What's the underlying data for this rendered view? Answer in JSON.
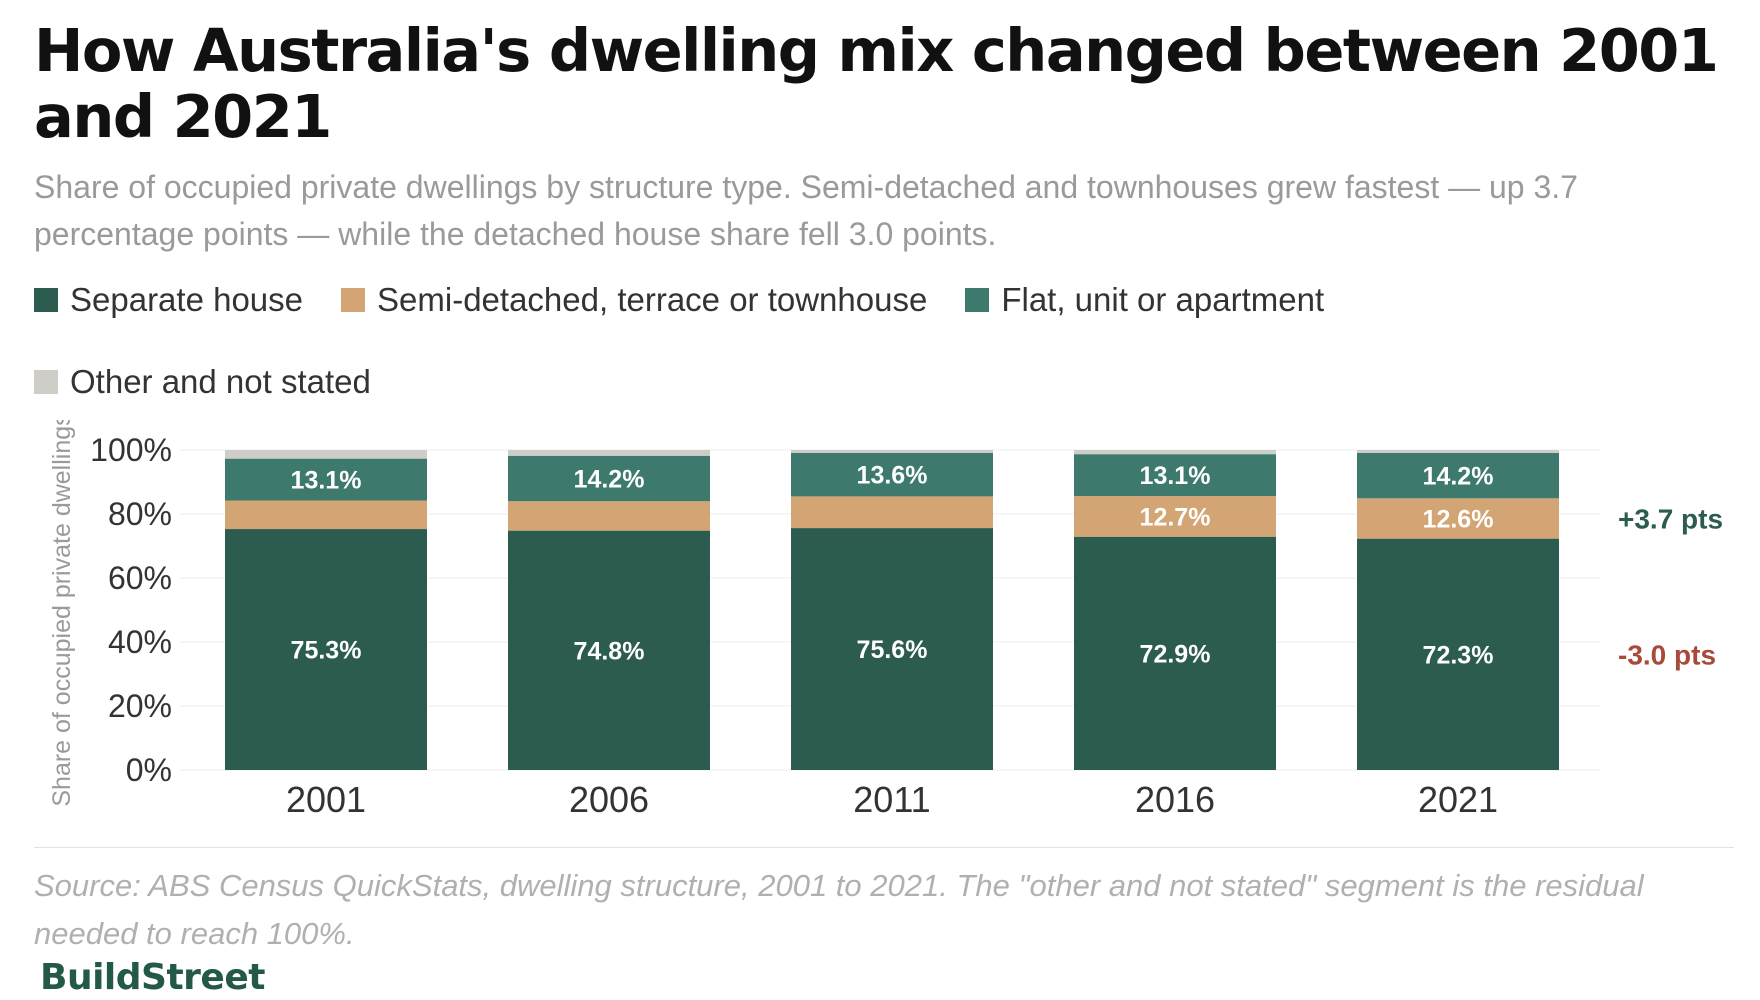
{
  "title": "How Australia's dwelling mix changed between 2001 and 2021",
  "subtitle": "Share of occupied private dwellings by structure type. Semi-detached and townhouses grew fastest — up 3.7 percentage points — while the detached house share fell 3.0 points.",
  "source": "Source: ABS Census QuickStats, dwelling structure, 2001 to 2021. The \"other and not stated\" segment is the residual needed to reach 100%.",
  "brand": "BuildStreet",
  "legend": [
    {
      "label": "Separate house",
      "color": "#2c5b50"
    },
    {
      "label": "Semi-detached, terrace or townhouse",
      "color": "#d4a574"
    },
    {
      "label": "Flat, unit or apartment",
      "color": "#3d7a6d"
    },
    {
      "label": "Other and not stated",
      "color": "#cfcdc8"
    }
  ],
  "chart_data": {
    "type": "bar",
    "stacked": true,
    "categories": [
      "2001",
      "2006",
      "2011",
      "2016",
      "2021"
    ],
    "ylabel": "Share of occupied private dwellings",
    "ylim": [
      0,
      100
    ],
    "yticks": [
      "0%",
      "20%",
      "40%",
      "60%",
      "80%",
      "100%"
    ],
    "grid": true,
    "series": [
      {
        "name": "Separate house",
        "color": "#2c5b50",
        "values": [
          75.3,
          74.8,
          75.6,
          72.9,
          72.3
        ],
        "labels": [
          "75.3%",
          "74.8%",
          "75.6%",
          "72.9%",
          "72.3%"
        ]
      },
      {
        "name": "Semi-detached, terrace or townhouse",
        "color": "#d4a574",
        "values": [
          8.9,
          9.2,
          9.9,
          12.7,
          12.6
        ],
        "labels": [
          "",
          "",
          "",
          "12.7%",
          "12.6%"
        ]
      },
      {
        "name": "Flat, unit or apartment",
        "color": "#3d7a6d",
        "values": [
          13.1,
          14.2,
          13.6,
          13.1,
          14.2
        ],
        "labels": [
          "13.1%",
          "14.2%",
          "13.6%",
          "13.1%",
          "14.2%"
        ]
      },
      {
        "name": "Other and not stated",
        "color": "#cfcdc8",
        "values": [
          2.7,
          1.8,
          0.9,
          1.3,
          0.9
        ],
        "labels": [
          "",
          "",
          "",
          "",
          ""
        ]
      }
    ],
    "annotations": [
      {
        "text": "+3.7 pts",
        "series": "Semi-detached, terrace or townhouse",
        "color": "#2c5b50"
      },
      {
        "text": "-3.0 pts",
        "series": "Separate house",
        "color": "#a84a3a"
      }
    ]
  }
}
